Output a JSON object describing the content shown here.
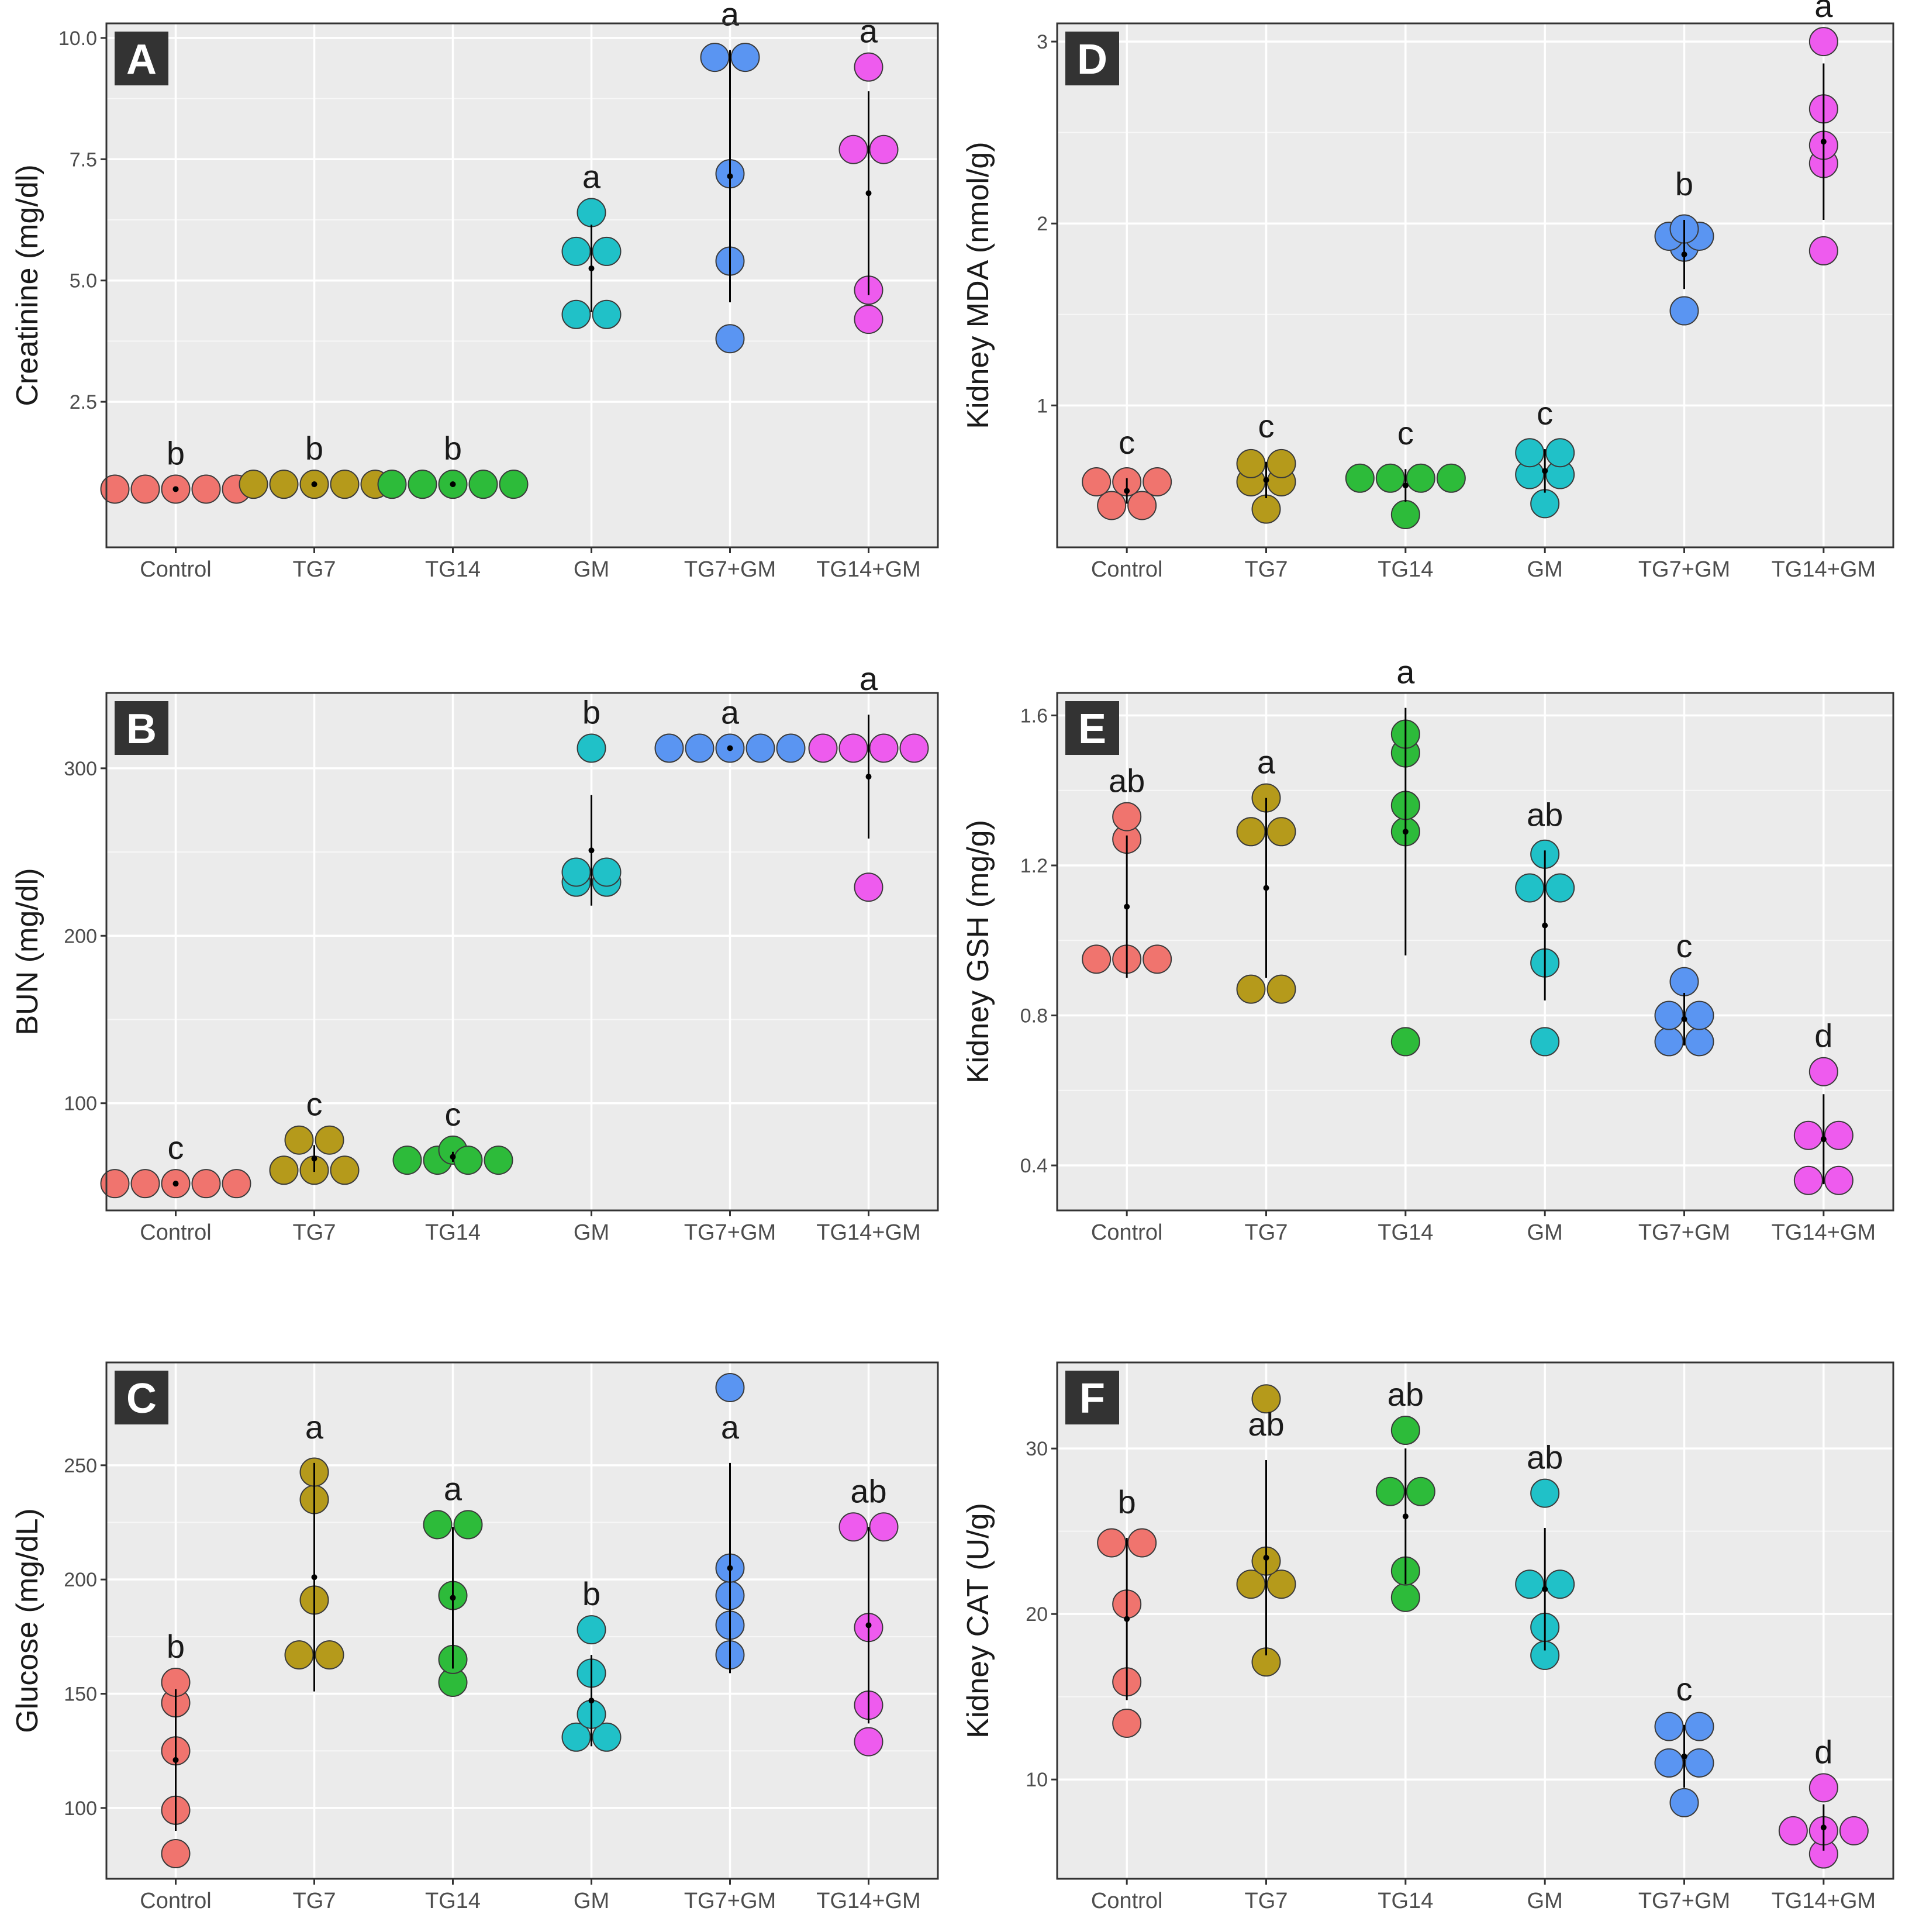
{
  "colors": {
    "Control": "#F0746E",
    "TG7": "#B59A1B",
    "TG14": "#2DBB3A",
    "GM": "#20C1C8",
    "TG7+GM": "#5A95F2",
    "TG14+GM": "#EE5BEE",
    "panel_bg": "#EBEBEB",
    "grid": "#FFFFFF"
  },
  "chart_data": [
    {
      "type": "scatter",
      "panel": "A",
      "ylabel": "Creatinine (mg/dl)",
      "categories": [
        "Control",
        "TG7",
        "TG14",
        "GM",
        "TG7+GM",
        "TG14+GM"
      ],
      "ylim": [
        -0.5,
        10.3
      ],
      "yticks": [
        2.5,
        5.0,
        7.5,
        10.0
      ],
      "ytick_labels": [
        "2.5",
        "5.0",
        "7.5",
        "10.0"
      ],
      "groups": [
        {
          "category": "Control",
          "points": [
            0.7,
            0.7,
            0.7,
            0.7,
            0.7
          ],
          "mean": 0.7,
          "sd": 0.0,
          "sig": "b"
        },
        {
          "category": "TG7",
          "points": [
            0.8,
            0.8,
            0.8,
            0.8,
            0.8
          ],
          "mean": 0.8,
          "sd": 0.0,
          "sig": "b"
        },
        {
          "category": "TG14",
          "points": [
            0.8,
            0.8,
            0.8,
            0.8,
            0.8
          ],
          "mean": 0.8,
          "sd": 0.0,
          "sig": "b"
        },
        {
          "category": "GM",
          "points": [
            4.3,
            4.3,
            5.6,
            5.6,
            6.4
          ],
          "mean": 5.25,
          "sd": 0.9,
          "sig": "a"
        },
        {
          "category": "TG7+GM",
          "points": [
            3.8,
            5.4,
            7.2,
            9.6,
            9.6
          ],
          "mean": 7.15,
          "sd": 2.6,
          "sig": "a"
        },
        {
          "category": "TG14+GM",
          "points": [
            4.2,
            4.8,
            7.7,
            7.7,
            9.4
          ],
          "mean": 6.8,
          "sd": 2.1,
          "sig": "a"
        }
      ]
    },
    {
      "type": "scatter",
      "panel": "B",
      "ylabel": "BUN (mg/dl)",
      "categories": [
        "Control",
        "TG7",
        "TG14",
        "GM",
        "TG7+GM",
        "TG14+GM"
      ],
      "ylim": [
        36,
        345
      ],
      "yticks": [
        100,
        200,
        300
      ],
      "ytick_labels": [
        "100",
        "200",
        "300"
      ],
      "groups": [
        {
          "category": "Control",
          "points": [
            52,
            52,
            52,
            52,
            52
          ],
          "mean": 52,
          "sd": 0,
          "sig": "c"
        },
        {
          "category": "TG7",
          "points": [
            60,
            60,
            78,
            78,
            60
          ],
          "mean": 67,
          "sd": 8,
          "sig": "c"
        },
        {
          "category": "TG14",
          "points": [
            66,
            66,
            72,
            66,
            66
          ],
          "mean": 68,
          "sd": 3,
          "sig": "c"
        },
        {
          "category": "GM",
          "points": [
            232,
            232,
            238,
            238,
            312
          ],
          "mean": 251,
          "sd": 33,
          "sig": "b"
        },
        {
          "category": "TG7+GM",
          "points": [
            312,
            312,
            312,
            312,
            312
          ],
          "mean": 312,
          "sd": 0,
          "sig": "a"
        },
        {
          "category": "TG14+GM",
          "points": [
            312,
            312,
            312,
            312,
            229
          ],
          "mean": 295,
          "sd": 37,
          "sig": "a"
        }
      ]
    },
    {
      "type": "scatter",
      "panel": "C",
      "ylabel": "Glucose (mg/dL)",
      "categories": [
        "Control",
        "TG7",
        "TG14",
        "GM",
        "TG7+GM",
        "TG14+GM"
      ],
      "ylim": [
        69,
        295
      ],
      "yticks": [
        100,
        150,
        200,
        250
      ],
      "ytick_labels": [
        "100",
        "150",
        "200",
        "250"
      ],
      "groups": [
        {
          "category": "Control",
          "points": [
            80,
            99,
            125,
            146,
            155
          ],
          "mean": 121,
          "sd": 31,
          "sig": "b"
        },
        {
          "category": "TG7",
          "points": [
            167,
            167,
            191,
            235,
            247
          ],
          "mean": 201,
          "sd": 50,
          "sig": "a"
        },
        {
          "category": "TG14",
          "points": [
            155,
            165,
            193,
            224,
            224
          ],
          "mean": 192,
          "sd": 31,
          "sig": "a"
        },
        {
          "category": "GM",
          "points": [
            131,
            131,
            141,
            159,
            178
          ],
          "mean": 147,
          "sd": 20,
          "sig": "b"
        },
        {
          "category": "TG7+GM",
          "points": [
            167,
            180,
            193,
            205,
            284
          ],
          "mean": 205,
          "sd": 46,
          "sig": "a"
        },
        {
          "category": "TG14+GM",
          "points": [
            129,
            145,
            179,
            223,
            223
          ],
          "mean": 180,
          "sd": 43,
          "sig": "ab"
        }
      ]
    },
    {
      "type": "scatter",
      "panel": "D",
      "ylabel": "Kidney MDA (nmol/g)",
      "categories": [
        "Control",
        "TG7",
        "TG14",
        "GM",
        "TG7+GM",
        "TG14+GM"
      ],
      "ylim": [
        0.22,
        3.1
      ],
      "yticks": [
        1,
        2,
        3
      ],
      "ytick_labels": [
        "1",
        "2",
        "3"
      ],
      "groups": [
        {
          "category": "Control",
          "points": [
            0.45,
            0.45,
            0.58,
            0.58,
            0.58
          ],
          "mean": 0.53,
          "sd": 0.07,
          "sig": "c"
        },
        {
          "category": "TG7",
          "points": [
            0.43,
            0.58,
            0.58,
            0.68,
            0.68
          ],
          "mean": 0.59,
          "sd": 0.1,
          "sig": "c"
        },
        {
          "category": "TG14",
          "points": [
            0.4,
            0.6,
            0.6,
            0.6,
            0.6
          ],
          "mean": 0.56,
          "sd": 0.09,
          "sig": "c"
        },
        {
          "category": "GM",
          "points": [
            0.46,
            0.62,
            0.62,
            0.74,
            0.74
          ],
          "mean": 0.64,
          "sd": 0.12,
          "sig": "c"
        },
        {
          "category": "TG7+GM",
          "points": [
            1.52,
            1.87,
            1.93,
            1.93,
            1.97
          ],
          "mean": 1.83,
          "sd": 0.19,
          "sig": "b"
        },
        {
          "category": "TG14+GM",
          "points": [
            1.85,
            2.33,
            2.43,
            2.63,
            3.0
          ],
          "mean": 2.45,
          "sd": 0.43,
          "sig": "a"
        }
      ]
    },
    {
      "type": "scatter",
      "panel": "E",
      "ylabel": "Kidney GSH (mg/g)",
      "categories": [
        "Control",
        "TG7",
        "TG14",
        "GM",
        "TG7+GM",
        "TG14+GM"
      ],
      "ylim": [
        0.28,
        1.66
      ],
      "yticks": [
        0.4,
        0.8,
        1.2,
        1.6
      ],
      "ytick_labels": [
        "0.4",
        "0.8",
        "1.2",
        "1.6"
      ],
      "groups": [
        {
          "category": "Control",
          "points": [
            0.95,
            0.95,
            0.95,
            1.27,
            1.33
          ],
          "mean": 1.09,
          "sd": 0.19,
          "sig": "ab"
        },
        {
          "category": "TG7",
          "points": [
            0.87,
            0.87,
            1.29,
            1.29,
            1.38
          ],
          "mean": 1.14,
          "sd": 0.24,
          "sig": "a"
        },
        {
          "category": "TG14",
          "points": [
            0.73,
            1.29,
            1.36,
            1.5,
            1.55
          ],
          "mean": 1.29,
          "sd": 0.33,
          "sig": "a"
        },
        {
          "category": "GM",
          "points": [
            0.73,
            0.94,
            1.14,
            1.14,
            1.23
          ],
          "mean": 1.04,
          "sd": 0.2,
          "sig": "ab"
        },
        {
          "category": "TG7+GM",
          "points": [
            0.73,
            0.73,
            0.8,
            0.8,
            0.89
          ],
          "mean": 0.79,
          "sd": 0.07,
          "sig": "c"
        },
        {
          "category": "TG14+GM",
          "points": [
            0.36,
            0.36,
            0.48,
            0.48,
            0.65
          ],
          "mean": 0.47,
          "sd": 0.12,
          "sig": "d"
        }
      ]
    },
    {
      "type": "scatter",
      "panel": "F",
      "ylabel": "Kidney CAT (U/g)",
      "categories": [
        "Control",
        "TG7",
        "TG14",
        "GM",
        "TG7+GM",
        "TG14+GM"
      ],
      "ylim": [
        4,
        35.2
      ],
      "yticks": [
        10,
        20,
        30
      ],
      "ytick_labels": [
        "10",
        "20",
        "30"
      ],
      "groups": [
        {
          "category": "Control",
          "points": [
            13.4,
            15.9,
            20.6,
            24.3,
            24.3
          ],
          "mean": 19.7,
          "sd": 4.9,
          "sig": "b"
        },
        {
          "category": "TG7",
          "points": [
            17.1,
            21.8,
            21.8,
            23.2,
            33.0
          ],
          "mean": 23.4,
          "sd": 5.9,
          "sig": "ab"
        },
        {
          "category": "TG14",
          "points": [
            21.0,
            22.6,
            27.4,
            27.4,
            31.1
          ],
          "mean": 25.9,
          "sd": 4.1,
          "sig": "ab"
        },
        {
          "category": "GM",
          "points": [
            17.5,
            19.2,
            21.8,
            21.8,
            27.3
          ],
          "mean": 21.5,
          "sd": 3.7,
          "sig": "ab"
        },
        {
          "category": "TG7+GM",
          "points": [
            8.6,
            11.0,
            11.0,
            13.2,
            13.2
          ],
          "mean": 11.4,
          "sd": 1.9,
          "sig": "c"
        },
        {
          "category": "TG14+GM",
          "points": [
            5.5,
            6.9,
            6.9,
            6.9,
            9.5
          ],
          "mean": 7.1,
          "sd": 1.4,
          "sig": "d"
        }
      ]
    }
  ]
}
